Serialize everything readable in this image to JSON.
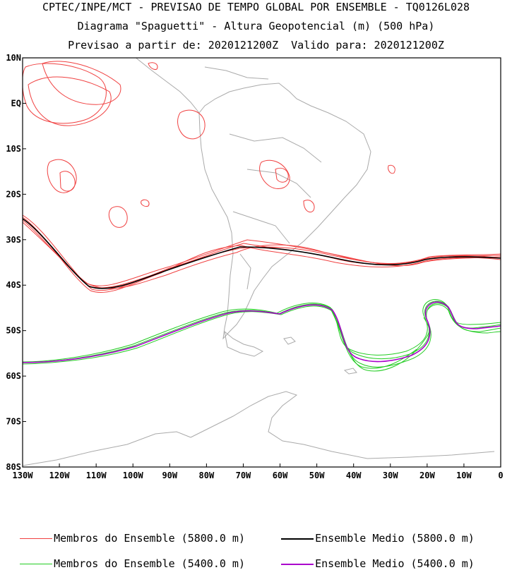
{
  "header": {
    "line1": "CPTEC/INPE/MCT - PREVISAO DE TEMPO GLOBAL POR ENSEMBLE - TQ0126L028",
    "line2": "Diagrama \"Spaguetti\" - Altura Geopotencial (m) (500 hPa)",
    "line3": "Previsao a partir de: 2020121200Z  Valido para: 2020121200Z"
  },
  "map": {
    "lat_labels": [
      "10N",
      "EQ",
      "10S",
      "20S",
      "30S",
      "40S",
      "50S",
      "60S",
      "70S",
      "80S"
    ],
    "lon_labels": [
      "130W",
      "120W",
      "110W",
      "100W",
      "90W",
      "80W",
      "70W",
      "60W",
      "50W",
      "40W",
      "30W",
      "20W",
      "10W",
      "0"
    ],
    "lat_range": [
      -80,
      10
    ],
    "lon_range": [
      -130,
      0
    ],
    "colors": {
      "members_5800": "#f04040",
      "mean_5800": "#000000",
      "members_5400": "#22cc22",
      "mean_5400": "#aa00cc",
      "coast": "#aaaaaa"
    }
  },
  "legend": {
    "members_5800": "Membros do Ensemble (5800.0 m)",
    "mean_5800": "Ensemble Medio (5800.0 m)",
    "members_5400": "Membros do Ensemble (5400.0 m)",
    "mean_5400": "Ensemble Medio (5400.0 m)"
  }
}
